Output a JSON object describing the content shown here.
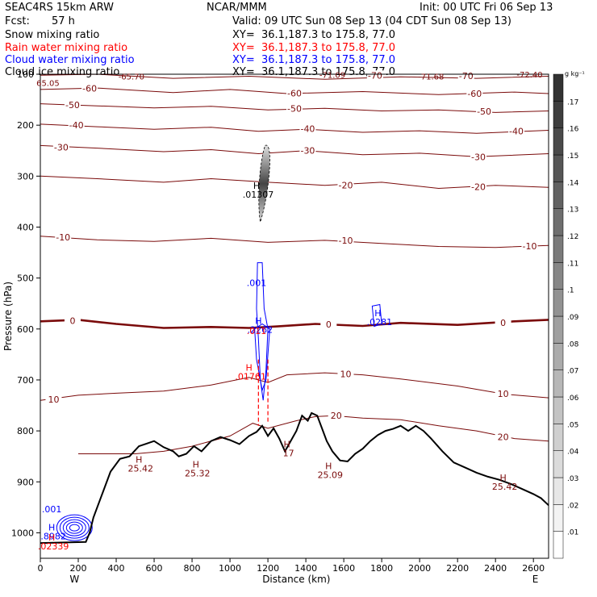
{
  "header": {
    "model": "SEAC4RS 15km ARW",
    "org": "NCAR/MMM",
    "init": "Init: 00 UTC Fri 06 Sep 13",
    "fcst_label": "Fcst:",
    "fcst_value": "57 h",
    "valid": "Valid: 09 UTC Sun 08 Sep 13 (04 CDT Sun 08 Sep 13)",
    "fields": [
      {
        "name": "Snow mixing ratio",
        "xy": "XY=  36.1,187.3 to 175.8, 77.0",
        "color": "#000000"
      },
      {
        "name": "Rain water mixing ratio",
        "xy": "XY=  36.1,187.3 to 175.8, 77.0",
        "color": "#ff0000"
      },
      {
        "name": "Cloud water mixing ratio",
        "xy": "XY=  36.1,187.3 to 175.8, 77.0",
        "color": "#0000ff"
      },
      {
        "name": "Cloud ice mixing ratio",
        "xy": "XY=  36.1,187.3 to 175.8, 77.0",
        "color": "#000000"
      }
    ]
  },
  "chart_data": {
    "type": "contour",
    "xlabel": "Distance (km)",
    "ylabel": "Pressure (hPa)",
    "xlim": [
      0,
      2680
    ],
    "ylim": [
      1050,
      100
    ],
    "x_ticks": [
      "0",
      "200",
      "400",
      "600",
      "800",
      "1000",
      "1200",
      "1400",
      "1600",
      "1800",
      "2000",
      "2200",
      "2400",
      "2600"
    ],
    "y_ticks": [
      "100",
      "200",
      "300",
      "400",
      "500",
      "600",
      "700",
      "800",
      "900",
      "1000"
    ],
    "x_ends": {
      "left": "W",
      "right": "E"
    },
    "colorbar": {
      "unit": "g kg⁻¹",
      "levels": [
        ".01",
        ".02",
        ".03",
        ".04",
        ".05",
        ".06",
        ".07",
        ".08",
        ".09",
        ".1",
        ".11",
        ".12",
        ".13",
        ".14",
        ".15",
        ".16",
        ".17"
      ]
    },
    "temperature_contours": [
      {
        "label": "-70",
        "points": [
          [
            0,
            102
          ],
          [
            300,
            100
          ],
          [
            700,
            108
          ],
          [
            1100,
            104
          ],
          [
            1500,
            110
          ],
          [
            1900,
            105
          ],
          [
            2300,
            108
          ],
          [
            2680,
            104
          ]
        ],
        "label_pos": [
          [
            1765,
            102
          ],
          [
            2245,
            103
          ]
        ]
      },
      {
        "label": "-60",
        "points": [
          [
            0,
            130
          ],
          [
            300,
            127
          ],
          [
            700,
            136
          ],
          [
            1000,
            130
          ],
          [
            1300,
            138
          ],
          [
            1700,
            134
          ],
          [
            2100,
            140
          ],
          [
            2500,
            135
          ],
          [
            2680,
            138
          ]
        ],
        "label_pos": [
          [
            260,
            128
          ],
          [
            1340,
            137
          ],
          [
            2290,
            138
          ]
        ]
      },
      {
        "label": "-50",
        "points": [
          [
            0,
            158
          ],
          [
            300,
            162
          ],
          [
            600,
            166
          ],
          [
            900,
            163
          ],
          [
            1200,
            170
          ],
          [
            1500,
            167
          ],
          [
            1800,
            172
          ],
          [
            2100,
            170
          ],
          [
            2400,
            175
          ],
          [
            2680,
            172
          ]
        ],
        "label_pos": [
          [
            170,
            160
          ],
          [
            1340,
            167
          ],
          [
            2340,
            173
          ]
        ]
      },
      {
        "label": "-40",
        "points": [
          [
            0,
            198
          ],
          [
            300,
            203
          ],
          [
            600,
            208
          ],
          [
            900,
            204
          ],
          [
            1150,
            212
          ],
          [
            1400,
            208
          ],
          [
            1700,
            214
          ],
          [
            2000,
            211
          ],
          [
            2300,
            216
          ],
          [
            2680,
            210
          ]
        ],
        "label_pos": [
          [
            190,
            200
          ],
          [
            1410,
            207
          ],
          [
            2510,
            212
          ]
        ]
      },
      {
        "label": "-30",
        "points": [
          [
            0,
            240
          ],
          [
            300,
            245
          ],
          [
            650,
            252
          ],
          [
            900,
            248
          ],
          [
            1150,
            256
          ],
          [
            1400,
            250
          ],
          [
            1700,
            258
          ],
          [
            2000,
            255
          ],
          [
            2300,
            262
          ],
          [
            2680,
            256
          ]
        ],
        "label_pos": [
          [
            110,
            243
          ],
          [
            1410,
            250
          ],
          [
            2310,
            262
          ]
        ]
      },
      {
        "label": "-20",
        "points": [
          [
            0,
            300
          ],
          [
            300,
            305
          ],
          [
            650,
            312
          ],
          [
            900,
            305
          ],
          [
            1200,
            312
          ],
          [
            1500,
            318
          ],
          [
            1800,
            312
          ],
          [
            2100,
            324
          ],
          [
            2400,
            318
          ],
          [
            2680,
            322
          ]
        ],
        "label_pos": [
          [
            1610,
            318
          ],
          [
            2310,
            321
          ]
        ]
      },
      {
        "label": "-10",
        "points": [
          [
            0,
            418
          ],
          [
            300,
            425
          ],
          [
            600,
            428
          ],
          [
            900,
            422
          ],
          [
            1200,
            430
          ],
          [
            1500,
            426
          ],
          [
            1800,
            432
          ],
          [
            2100,
            438
          ],
          [
            2400,
            440
          ],
          [
            2680,
            436
          ]
        ],
        "label_pos": [
          [
            120,
            420
          ],
          [
            1610,
            426
          ],
          [
            2580,
            437
          ]
        ]
      },
      {
        "label": "0",
        "points": [
          [
            0,
            585
          ],
          [
            200,
            582
          ],
          [
            400,
            590
          ],
          [
            650,
            598
          ],
          [
            900,
            596
          ],
          [
            1100,
            598
          ],
          [
            1250,
            595
          ],
          [
            1450,
            590
          ],
          [
            1700,
            594
          ],
          [
            1900,
            588
          ],
          [
            2200,
            592
          ],
          [
            2500,
            585
          ],
          [
            2680,
            582
          ]
        ],
        "label_pos": [
          [
            170,
            584
          ],
          [
            1520,
            591
          ],
          [
            2440,
            588
          ]
        ],
        "bold": true
      },
      {
        "label": "10",
        "points": [
          [
            0,
            740
          ],
          [
            200,
            730
          ],
          [
            400,
            726
          ],
          [
            650,
            722
          ],
          [
            900,
            710
          ],
          [
            1100,
            695
          ],
          [
            1200,
            705
          ],
          [
            1300,
            690
          ],
          [
            1500,
            686
          ],
          [
            1700,
            690
          ],
          [
            1900,
            698
          ],
          [
            2200,
            712
          ],
          [
            2450,
            728
          ],
          [
            2680,
            735
          ]
        ],
        "label_pos": [
          [
            70,
            738
          ],
          [
            1610,
            688
          ],
          [
            2440,
            727
          ]
        ]
      },
      {
        "label": "20",
        "points": [
          [
            200,
            845
          ],
          [
            300,
            845
          ],
          [
            500,
            845
          ],
          [
            650,
            840
          ],
          [
            800,
            830
          ],
          [
            1000,
            810
          ],
          [
            1120,
            785
          ],
          [
            1200,
            795
          ],
          [
            1350,
            780
          ],
          [
            1450,
            772
          ],
          [
            1550,
            770
          ],
          [
            1700,
            775
          ],
          [
            1900,
            778
          ],
          [
            2100,
            790
          ],
          [
            2300,
            800
          ],
          [
            2500,
            815
          ],
          [
            2680,
            820
          ]
        ],
        "label_pos": [
          [
            1560,
            770
          ],
          [
            2440,
            812
          ]
        ]
      }
    ],
    "terrain": [
      [
        0,
        1020
      ],
      [
        240,
        1018
      ],
      [
        260,
        1000
      ],
      [
        280,
        970
      ],
      [
        330,
        920
      ],
      [
        370,
        880
      ],
      [
        420,
        855
      ],
      [
        470,
        850
      ],
      [
        520,
        830
      ],
      [
        560,
        825
      ],
      [
        600,
        820
      ],
      [
        650,
        832
      ],
      [
        700,
        840
      ],
      [
        730,
        850
      ],
      [
        770,
        845
      ],
      [
        810,
        830
      ],
      [
        850,
        840
      ],
      [
        900,
        820
      ],
      [
        950,
        812
      ],
      [
        1000,
        818
      ],
      [
        1050,
        826
      ],
      [
        1100,
        810
      ],
      [
        1140,
        802
      ],
      [
        1170,
        790
      ],
      [
        1200,
        810
      ],
      [
        1230,
        795
      ],
      [
        1260,
        815
      ],
      [
        1290,
        840
      ],
      [
        1320,
        820
      ],
      [
        1350,
        800
      ],
      [
        1380,
        770
      ],
      [
        1410,
        780
      ],
      [
        1430,
        765
      ],
      [
        1460,
        770
      ],
      [
        1490,
        800
      ],
      [
        1510,
        820
      ],
      [
        1540,
        840
      ],
      [
        1580,
        858
      ],
      [
        1620,
        860
      ],
      [
        1660,
        845
      ],
      [
        1700,
        835
      ],
      [
        1740,
        820
      ],
      [
        1780,
        808
      ],
      [
        1820,
        800
      ],
      [
        1860,
        796
      ],
      [
        1900,
        790
      ],
      [
        1940,
        800
      ],
      [
        1980,
        790
      ],
      [
        2020,
        800
      ],
      [
        2060,
        815
      ],
      [
        2120,
        840
      ],
      [
        2180,
        862
      ],
      [
        2240,
        872
      ],
      [
        2300,
        882
      ],
      [
        2360,
        890
      ],
      [
        2420,
        896
      ],
      [
        2480,
        904
      ],
      [
        2540,
        914
      ],
      [
        2600,
        924
      ],
      [
        2640,
        932
      ],
      [
        2680,
        946
      ]
    ],
    "markers": [
      {
        "label": "H",
        "value": "25.42",
        "x": 520,
        "y": 862
      },
      {
        "label": "H",
        "value": "25.32",
        "x": 820,
        "y": 872
      },
      {
        "label": "H",
        "value": "17",
        "x": 1300,
        "y": 832
      },
      {
        "label": "H",
        "value": "25.09",
        "x": 1520,
        "y": 875
      },
      {
        "label": "H",
        "value": "25.42",
        "x": 2440,
        "y": 898
      },
      {
        "label": "H",
        "value": ".01307",
        "x": 1140,
        "y": 325,
        "color": "#000000"
      },
      {
        "label": "H",
        "value": ".2262",
        "x": 1150,
        "y": 590,
        "color": "#0000ff"
      },
      {
        "label": "",
        "value": ".001",
        "x": 1140,
        "y": 516,
        "color": "#0000ff"
      },
      {
        "label": "H",
        "value": ".0281",
        "x": 1780,
        "y": 575,
        "color": "#0000ff"
      },
      {
        "label": "",
        "value": ".011",
        "x": 1140,
        "y": 610,
        "color": "#ff0000"
      },
      {
        "label": "H",
        "value": ".01761",
        "x": 1100,
        "y": 682,
        "color": "#ff0000"
      },
      {
        "label": "",
        "value": ".001",
        "x": 60,
        "y": 960,
        "color": "#0000ff"
      },
      {
        "label": "H",
        "value": ".8982",
        "x": 60,
        "y": 995,
        "color": "#0000ff"
      },
      {
        "label": "H",
        "value": ".02339",
        "x": 60,
        "y": 1015,
        "color": "#ff0000"
      }
    ],
    "corner_labels": [
      {
        "value": "65.05",
        "x": 40,
        "y": 123
      },
      {
        "value": "-65.70",
        "x": 480,
        "y": 110
      },
      {
        "value": "-71.09",
        "x": 1540,
        "y": 107
      },
      {
        "value": "-71.68",
        "x": 2060,
        "y": 110
      },
      {
        "value": "-72.40",
        "x": 2580,
        "y": 106
      }
    ]
  }
}
